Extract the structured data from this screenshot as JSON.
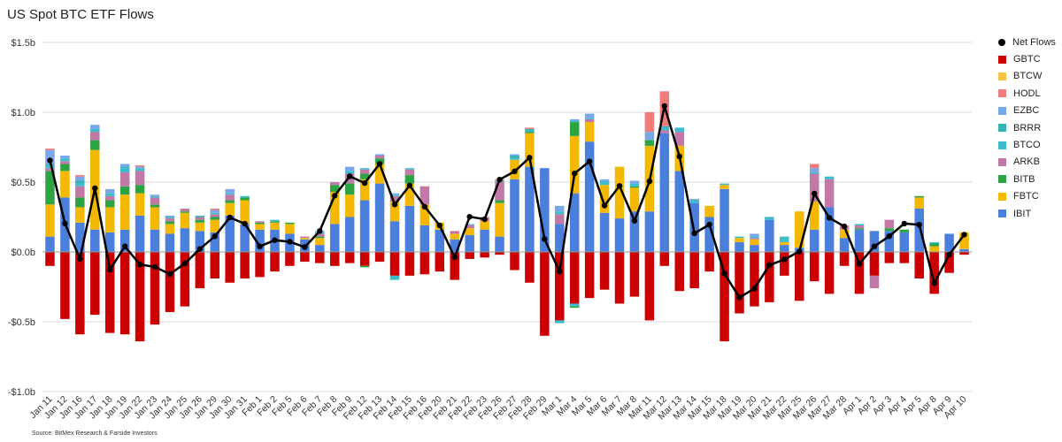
{
  "title": "US Spot BTC ETF Flows",
  "source": "Source: BitMex Research & Farside Investors",
  "chart_data": {
    "type": "bar",
    "stacked": true,
    "title": "US Spot BTC ETF Flows",
    "ylim": [
      -1.0,
      1.5
    ],
    "yticks": [
      -1.0,
      -0.5,
      0.0,
      0.5,
      1.0,
      1.5
    ],
    "ytick_labels": [
      "-$1.0b",
      "-$0.5b",
      "$0.0b",
      "$0.5b",
      "$1.0b",
      "$1.5b"
    ],
    "unit": "$b",
    "legend_position": "right",
    "categories": [
      "Jan 11",
      "Jan 12",
      "Jan 16",
      "Jan 17",
      "Jan 18",
      "Jan 19",
      "Jan 22",
      "Jan 23",
      "Jan 24",
      "Jan 25",
      "Jan 26",
      "Jan 29",
      "Jan 30",
      "Jan 31",
      "Feb 1",
      "Feb 2",
      "Feb 5",
      "Feb 6",
      "Feb 7",
      "Feb 8",
      "Feb 9",
      "Feb 12",
      "Feb 13",
      "Feb 14",
      "Feb 15",
      "Feb 16",
      "Feb 20",
      "Feb 21",
      "Feb 22",
      "Feb 23",
      "Feb 26",
      "Feb 27",
      "Feb 28",
      "Feb 29",
      "Mar 1",
      "Mar 4",
      "Mar 5",
      "Mar 6",
      "Mar 7",
      "Mar 8",
      "Mar 11",
      "Mar 12",
      "Mar 13",
      "Mar 14",
      "Mar 15",
      "Mar 18",
      "Mar 19",
      "Mar 20",
      "Mar 21",
      "Mar 22",
      "Mar 25",
      "Mar 26",
      "Mar 27",
      "Mar 28",
      "Apr 1",
      "Apr 2",
      "Apr 3",
      "Apr 4",
      "Apr 5",
      "Apr 8",
      "Apr 9",
      "Apr 10"
    ],
    "series": [
      {
        "name": "IBIT",
        "color": "#4a7fdc",
        "values": [
          0.11,
          0.39,
          0.21,
          0.16,
          0.14,
          0.16,
          0.26,
          0.16,
          0.13,
          0.17,
          0.15,
          0.14,
          0.26,
          0.2,
          0.16,
          0.16,
          0.13,
          0.09,
          0.05,
          0.2,
          0.25,
          0.37,
          0.49,
          0.22,
          0.33,
          0.19,
          0.16,
          0.09,
          0.12,
          0.16,
          0.11,
          0.52,
          0.61,
          0.6,
          0.2,
          0.42,
          0.79,
          0.28,
          0.24,
          0.29,
          0.29,
          0.85,
          0.58,
          0.35,
          0.25,
          0.45,
          0.07,
          0.05,
          0.23,
          0.05,
          0.03,
          0.16,
          0.32,
          0.1,
          0.16,
          0.15,
          0.15,
          0.14,
          0.31,
          0.0,
          0.13,
          0.02
        ]
      },
      {
        "name": "FBTC",
        "color": "#f5b800",
        "values": [
          0.23,
          0.19,
          0.11,
          0.57,
          0.18,
          0.25,
          0.16,
          0.16,
          0.07,
          0.11,
          0.06,
          0.09,
          0.09,
          0.17,
          0.04,
          0.05,
          0.07,
          0.01,
          0.05,
          0.23,
          0.16,
          0.15,
          0.14,
          0.14,
          0.16,
          0.15,
          0.05,
          0.04,
          0.05,
          0.06,
          0.24,
          0.14,
          0.24,
          0.0,
          0.0,
          0.41,
          0.14,
          0.2,
          0.37,
          0.17,
          0.47,
          0.0,
          0.18,
          0.0,
          0.08,
          0.03,
          0.03,
          0.04,
          0.0,
          0.02,
          0.26,
          0.2,
          0.0,
          0.06,
          0.0,
          0.0,
          0.0,
          0.0,
          0.08,
          0.04,
          0.0,
          0.12
        ]
      },
      {
        "name": "BITB",
        "color": "#2ca444",
        "values": [
          0.24,
          0.05,
          0.07,
          0.07,
          0.05,
          0.06,
          0.06,
          0.02,
          0.02,
          0.01,
          0.02,
          0.02,
          0.02,
          0.02,
          0.01,
          0.01,
          0.01,
          0.0,
          0.01,
          0.05,
          0.08,
          0.04,
          0.04,
          0.0,
          0.06,
          0.0,
          0.0,
          0.0,
          0.0,
          0.0,
          0.02,
          0.0,
          0.01,
          0.0,
          0.0,
          0.1,
          0.0,
          0.0,
          0.0,
          0.01,
          0.04,
          0.0,
          0.0,
          0.0,
          0.0,
          0.0,
          0.0,
          0.0,
          0.0,
          0.0,
          0.0,
          0.0,
          0.0,
          0.0,
          0.01,
          0.0,
          0.02,
          0.02,
          0.01,
          0.02,
          0.0,
          0.0
        ]
      },
      {
        "name": "ARKB",
        "color": "#c279a8",
        "values": [
          0.02,
          0.02,
          0.08,
          0.06,
          0.03,
          0.1,
          0.1,
          0.05,
          0.02,
          0.02,
          0.02,
          0.02,
          0.04,
          0.0,
          0.01,
          0.0,
          0.0,
          0.01,
          0.02,
          0.02,
          0.07,
          0.03,
          0.02,
          0.04,
          0.04,
          0.13,
          0.0,
          0.02,
          0.02,
          0.03,
          0.13,
          0.0,
          0.0,
          0.0,
          0.07,
          0.0,
          0.02,
          0.0,
          0.0,
          0.0,
          0.0,
          0.02,
          0.1,
          0.0,
          0.0,
          0.0,
          0.0,
          0.01,
          0.0,
          0.0,
          0.0,
          0.2,
          0.2,
          0.02,
          0.02,
          0.0,
          0.06,
          0.0,
          0.0,
          0.0,
          0.0,
          0.0
        ]
      },
      {
        "name": "BTCO",
        "color": "#3dbccb",
        "values": [
          0.02,
          0.02,
          0.02,
          0.02,
          0.02,
          0.03,
          0.02,
          0.01,
          0.01,
          0.0,
          0.01,
          0.01,
          0.01,
          0.01,
          0.0,
          0.01,
          0.0,
          0.0,
          0.01,
          0.0,
          0.02,
          0.01,
          0.0,
          0.01,
          0.01,
          0.0,
          0.0,
          0.0,
          0.0,
          0.0,
          0.01,
          0.01,
          0.01,
          0.0,
          0.02,
          0.01,
          0.01,
          0.03,
          0.0,
          0.02,
          0.0,
          0.02,
          0.03,
          0.02,
          0.0,
          0.01,
          0.01,
          0.01,
          0.01,
          0.04,
          0.0,
          0.01,
          0.02,
          0.0,
          0.01,
          0.0,
          0.0,
          0.0,
          0.0,
          0.01,
          0.0,
          0.0
        ]
      },
      {
        "name": "BRRR",
        "color": "#33b3b3",
        "values": [
          0.01,
          0.0,
          0.02,
          0.0,
          0.0,
          0.01,
          0.0,
          0.0,
          0.0,
          0.0,
          0.0,
          0.0,
          0.0,
          0.0,
          0.0,
          0.0,
          0.0,
          0.0,
          0.0,
          0.0,
          0.0,
          0.0,
          0.0,
          0.0,
          0.0,
          0.0,
          0.0,
          0.0,
          0.0,
          0.0,
          0.0,
          0.02,
          0.01,
          0.0,
          0.0,
          0.0,
          0.0,
          0.0,
          0.0,
          0.0,
          0.0,
          0.01,
          0.0,
          0.0,
          0.0,
          0.0,
          0.0,
          0.0,
          0.01,
          0.0,
          0.0,
          0.0,
          0.0,
          0.0,
          0.0,
          0.0,
          0.0,
          0.0,
          0.0,
          0.0,
          0.0,
          0.0
        ]
      },
      {
        "name": "EZBC",
        "color": "#79a8ea",
        "values": [
          0.1,
          0.02,
          0.03,
          0.03,
          0.03,
          0.02,
          0.01,
          0.01,
          0.01,
          0.0,
          0.0,
          0.02,
          0.03,
          0.0,
          0.0,
          0.0,
          0.0,
          0.0,
          0.01,
          0.0,
          0.03,
          0.0,
          0.01,
          0.01,
          0.0,
          0.0,
          0.0,
          0.0,
          0.01,
          0.0,
          0.0,
          0.01,
          0.0,
          0.0,
          0.04,
          0.01,
          0.03,
          0.01,
          0.0,
          0.02,
          0.06,
          0.0,
          0.0,
          0.01,
          0.0,
          0.0,
          0.0,
          0.02,
          0.0,
          0.0,
          0.0,
          0.03,
          0.0,
          0.0,
          0.0,
          0.0,
          0.0,
          0.0,
          0.0,
          0.0,
          0.0,
          0.0
        ]
      },
      {
        "name": "HODL",
        "color": "#ef7b7b",
        "values": [
          0.01,
          0.0,
          0.01,
          0.0,
          0.0,
          0.0,
          0.01,
          0.0,
          0.0,
          0.0,
          0.0,
          0.01,
          0.0,
          0.0,
          0.0,
          0.0,
          0.0,
          0.0,
          0.0,
          0.0,
          0.0,
          0.0,
          0.0,
          0.0,
          0.0,
          0.0,
          0.0,
          0.0,
          0.0,
          0.0,
          0.01,
          0.0,
          0.01,
          0.0,
          0.0,
          0.0,
          0.0,
          0.0,
          0.0,
          0.0,
          0.14,
          0.25,
          0.0,
          0.0,
          0.0,
          0.0,
          0.0,
          0.0,
          0.0,
          0.0,
          0.0,
          0.03,
          0.0,
          0.01,
          0.0,
          0.0,
          0.0,
          0.0,
          0.0,
          0.0,
          0.0,
          0.0
        ]
      },
      {
        "name": "BTCW",
        "color": "#f5c242",
        "values": [
          0.0,
          0.0,
          0.0,
          0.0,
          0.0,
          0.0,
          0.0,
          0.0,
          0.0,
          0.0,
          0.0,
          0.0,
          0.0,
          0.0,
          0.0,
          0.0,
          0.0,
          0.0,
          0.0,
          0.0,
          0.0,
          0.0,
          0.0,
          0.0,
          0.0,
          0.0,
          0.0,
          0.0,
          0.0,
          0.0,
          0.0,
          0.0,
          0.0,
          0.0,
          0.0,
          0.0,
          0.0,
          0.0,
          0.0,
          0.0,
          0.0,
          0.0,
          0.0,
          0.0,
          0.0,
          0.0,
          0.0,
          0.0,
          0.0,
          0.0,
          0.0,
          0.0,
          0.0,
          0.0,
          0.0,
          0.0,
          0.0,
          0.0,
          0.0,
          0.0,
          0.0,
          0.0
        ]
      },
      {
        "name": "GBTC",
        "color": "#cc0000",
        "values": [
          -0.1,
          -0.48,
          -0.59,
          -0.45,
          -0.58,
          -0.59,
          -0.64,
          -0.52,
          -0.43,
          -0.39,
          -0.26,
          -0.19,
          -0.22,
          -0.19,
          -0.18,
          -0.14,
          -0.1,
          -0.07,
          -0.08,
          -0.1,
          -0.08,
          -0.1,
          -0.07,
          -0.17,
          -0.17,
          -0.16,
          -0.14,
          -0.2,
          -0.05,
          -0.04,
          -0.02,
          -0.13,
          -0.22,
          -0.6,
          -0.49,
          -0.37,
          -0.33,
          -0.27,
          -0.37,
          -0.32,
          -0.49,
          -0.1,
          -0.28,
          -0.26,
          -0.14,
          -0.64,
          -0.44,
          -0.39,
          -0.36,
          -0.17,
          -0.35,
          -0.21,
          -0.3,
          -0.1,
          -0.3,
          -0.17,
          -0.08,
          -0.08,
          -0.19,
          -0.3,
          -0.15,
          -0.02
        ]
      }
    ],
    "negative_extra": {
      "note": "small non-GBTC outflows stacked below zero",
      "series": [
        {
          "name": "ARKB",
          "color": "#c279a8",
          "values": [
            0,
            0,
            0,
            0,
            0,
            0,
            0,
            0,
            0,
            0,
            0,
            0,
            0,
            0,
            0,
            0,
            0,
            0,
            0,
            0,
            0,
            0,
            0,
            0,
            0,
            0,
            0,
            0,
            0,
            0,
            0,
            0,
            0,
            0,
            0,
            0,
            0,
            0,
            0,
            0,
            0,
            0,
            0,
            0,
            0,
            0,
            0,
            0,
            0,
            0,
            0,
            0,
            0,
            0,
            0,
            -0.09,
            0,
            0,
            0,
            0,
            0,
            0
          ]
        },
        {
          "name": "BTCO",
          "color": "#3dbccb",
          "values": [
            0,
            0,
            0,
            0,
            0,
            0,
            0,
            0,
            0,
            0,
            0,
            0,
            0,
            0,
            0,
            0,
            0,
            0,
            0,
            0,
            0,
            0,
            0,
            -0.03,
            0,
            0,
            0,
            0,
            0,
            0,
            0,
            0,
            0,
            0,
            -0.02,
            -0.02,
            0,
            0,
            0,
            0,
            0,
            0,
            0,
            0,
            0,
            0,
            0,
            0,
            0,
            0,
            0,
            0,
            0,
            0,
            0,
            0,
            0,
            0,
            0,
            0,
            0,
            0
          ]
        },
        {
          "name": "BITB",
          "color": "#2ca444",
          "values": [
            0,
            0,
            0,
            0,
            0,
            0,
            0,
            0,
            0,
            0,
            0,
            0,
            0,
            0,
            0,
            0,
            0,
            0,
            0,
            0,
            0,
            -0.01,
            0,
            0,
            0,
            0,
            0,
            0,
            0,
            0,
            0,
            0,
            0,
            0,
            0,
            -0.01,
            0,
            0,
            0,
            0,
            0,
            0,
            0,
            0,
            0,
            0,
            0,
            0,
            0,
            0,
            0,
            0,
            0,
            0,
            0,
            0,
            0,
            0,
            0,
            0,
            0,
            0
          ]
        }
      ]
    },
    "net_flows": {
      "name": "Net Flows",
      "color": "#000000",
      "values": [
        0.655,
        0.204,
        -0.049,
        0.456,
        -0.127,
        0.04,
        -0.09,
        -0.107,
        -0.159,
        -0.082,
        0.021,
        0.112,
        0.247,
        0.202,
        0.04,
        0.084,
        0.073,
        0.035,
        0.15,
        0.403,
        0.542,
        0.493,
        0.631,
        0.34,
        0.476,
        0.324,
        0.19,
        -0.038,
        0.252,
        0.234,
        0.518,
        0.577,
        0.675,
        0.092,
        -0.14,
        0.562,
        0.648,
        0.332,
        0.473,
        0.223,
        0.506,
        1.045,
        0.684,
        0.133,
        0.196,
        -0.155,
        -0.326,
        -0.262,
        -0.094,
        -0.054,
        0.003,
        0.418,
        0.244,
        0.183,
        -0.085,
        0.04,
        0.113,
        0.203,
        0.195,
        -0.224,
        -0.019,
        0.124
      ]
    }
  },
  "legend": [
    {
      "label": "Net Flows",
      "color": "#000000",
      "kind": "dot"
    },
    {
      "label": "GBTC",
      "color": "#cc0000",
      "kind": "box"
    },
    {
      "label": "BTCW",
      "color": "#f5c242",
      "kind": "box"
    },
    {
      "label": "HODL",
      "color": "#ef7b7b",
      "kind": "box"
    },
    {
      "label": "EZBC",
      "color": "#79a8ea",
      "kind": "box"
    },
    {
      "label": "BRRR",
      "color": "#33b3b3",
      "kind": "box"
    },
    {
      "label": "BTCO",
      "color": "#3dbccb",
      "kind": "box"
    },
    {
      "label": "ARKB",
      "color": "#c279a8",
      "kind": "box"
    },
    {
      "label": "BITB",
      "color": "#2ca444",
      "kind": "box"
    },
    {
      "label": "FBTC",
      "color": "#f5b800",
      "kind": "box"
    },
    {
      "label": "IBIT",
      "color": "#4a7fdc",
      "kind": "box"
    }
  ]
}
